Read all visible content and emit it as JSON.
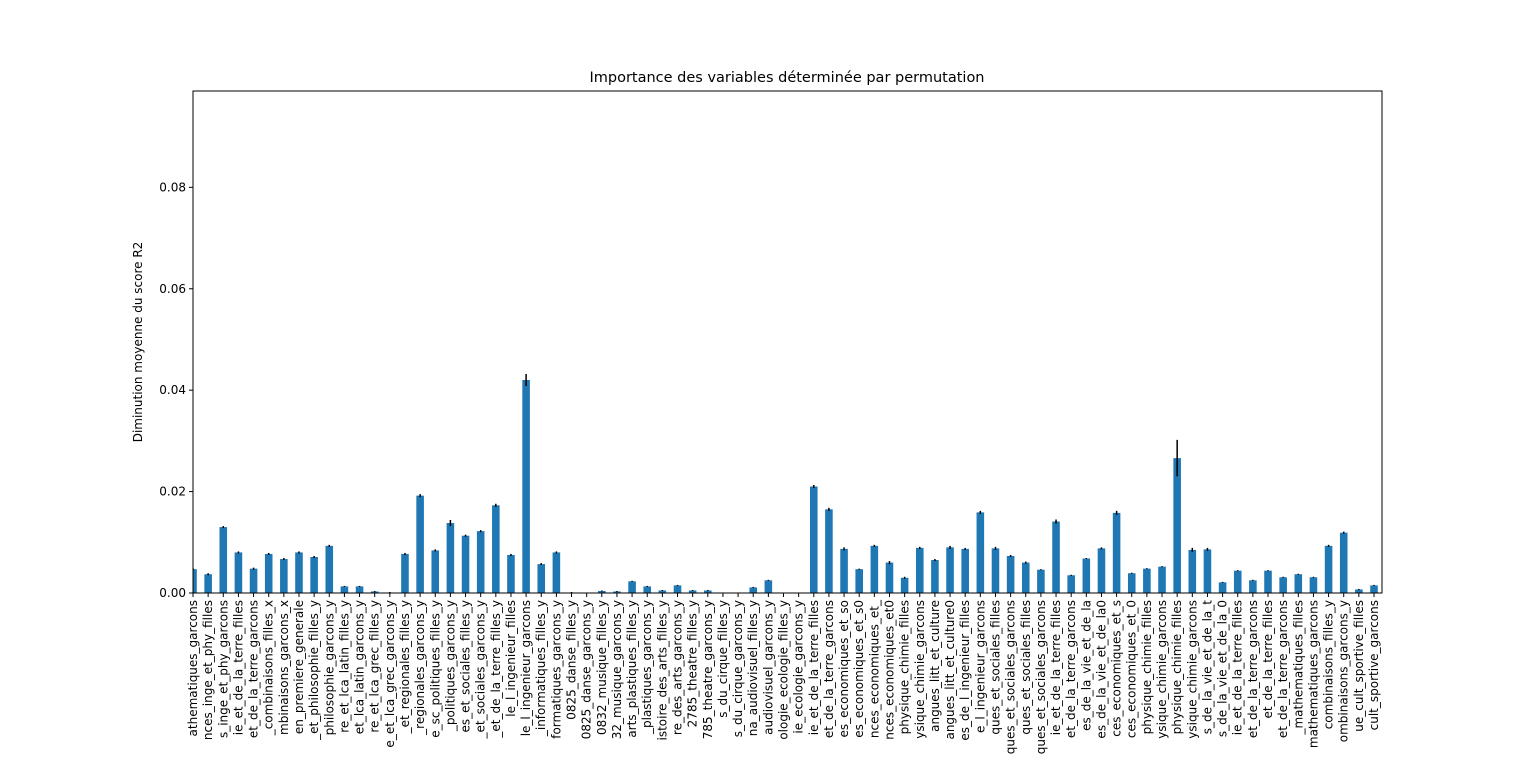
{
  "chart_data": {
    "type": "bar",
    "title": "Importance des variables déterminée par permutation",
    "ylabel": "Diminution moyenne du score R2",
    "color": "#1f77b4",
    "error_color": "#000000",
    "categories": [
      "athematiques_garcons",
      "nces_inge_et_phy_filles",
      "s_inge_et_phy_garcons",
      "ie_et_de_la_terre_filles",
      "et_de_la_terre_garcons",
      "_combinaisons_filles_x",
      "mbinaisons_garcons_x",
      "en_premiere_generale",
      "_et_philosophie_filles_y",
      "philosophie_garcons_y",
      "re_et_lca_latin_filles_y",
      "et_lca_latin_garcons_y",
      "re_et_lca_grec_filles_y",
      "e_et_lca_grec_garcons_y",
      "_et_regionales_filles_y",
      "_regionales_garcons_y",
      "e_sc_politiques_filles_y",
      "_politiques_garcons_y",
      "es_et_sociales_filles_y",
      "_et_sociales_garcons_y",
      "_et_de_la_terre_filles_y",
      "le_l_ingenieur_filles",
      "le_l_ingenieur_garcons",
      "_informatiques_filles_y",
      "formatiques_garcons_y",
      "0825_danse_filles_y",
      "0825_danse_garcons_y",
      "0832_musique_filles_y",
      "32_musique_garcons_y",
      "arts_plastiques_filles_y",
      "_plastiques_garcons_y",
      "istoire_des_arts_filles_y",
      "re_des_arts_garcons_y",
      "2785_theatre_filles_y",
      "785_theatre_garcons_y",
      "s_du_cirque_filles_y",
      "s_du_cirque_garcons_y",
      "na_audiovisuel_filles_y",
      "audiovisuel_garcons_y",
      "ologie_ecologie_filles_y",
      "ie_ecologie_garcons_y",
      "ie_et_de_la_terre_filles",
      "et_de_la_terre_garcons",
      "es_economiques_et_so",
      "es_economiques_et_s0",
      "nces_economiques_et_",
      "nces_economiques_et0",
      "physique_chimie_filles",
      "ysique_chimie_garcons",
      "angues_litt_et_culture",
      "angues_litt_et_culture0",
      "es_de_l_ingenieur_filles",
      "e_l_ingenieur_garcons",
      "ques_et_sociales_filles",
      "ques_et_sociales_garcons",
      "ques_et_sociales_filles",
      "ques_et_sociales_garcons",
      "ie_et_de_la_terre_filles",
      "et_de_la_terre_garcons",
      "es_de_la_vie_et_de_la",
      "es_de_la_vie_et_de_la0",
      "ces_economiques_et_s",
      "ces_economiques_et_0",
      "physique_chimie_filles",
      "ysique_chimie_garcons",
      "physique_chimie_filles",
      "ysique_chimie_garcons",
      "s_de_la_vie_et_de_la_t",
      "s_de_la_vie_et_de_la_0",
      "ie_et_de_la_terre_filles",
      "et_de_la_terre_garcons",
      "et_de_la_terre_filles",
      "et_de_la_terre_garcons",
      "_mathematiques_filles",
      "mathematiques_garcons",
      "combinaisons_filles_y",
      "ombinaisons_garcons_y",
      "ue_cult_sportive_filles",
      "cult_sportive_garcons"
    ],
    "values": [
      0.0047,
      0.0037,
      0.013,
      0.008,
      0.0048,
      0.0077,
      0.0067,
      0.008,
      0.0071,
      0.0093,
      0.0013,
      0.0013,
      0.0003,
      0.0001,
      0.0077,
      0.0192,
      0.0084,
      0.0138,
      0.0113,
      0.0122,
      0.0173,
      0.0075,
      0.042,
      0.0057,
      0.008,
      0.0001,
      0,
      0.0004,
      0.0003,
      0.0023,
      0.0013,
      0.0005,
      0.0015,
      0.0005,
      0.0005,
      0,
      0,
      0.0011,
      0.0025,
      0,
      0,
      0.021,
      0.0165,
      0.0087,
      0.0047,
      0.0093,
      0.006,
      0.003,
      0.0089,
      0.0065,
      0.009,
      0.0087,
      0.0159,
      0.0088,
      0.0073,
      0.006,
      0.0046,
      0.0141,
      0.0035,
      0.0068,
      0.0088,
      0.0158,
      0.0039,
      0.0048,
      0.0052,
      0.0266,
      0.0085,
      0.0086,
      0.0021,
      0.0044,
      0.0025,
      0.0044,
      0.0031,
      0.0037,
      0.0031,
      0.0093,
      0.0119,
      0.0007,
      0.0015
    ],
    "errors": [
      0.0002,
      0.0002,
      0.0002,
      0.0002,
      0.0002,
      0.0002,
      0.0002,
      0.0002,
      0.0002,
      0.0002,
      0.0001,
      0.0001,
      0.0001,
      0.0001,
      0.0002,
      0.0003,
      0.0002,
      0.0006,
      0.0002,
      0.0002,
      0.0003,
      0.0002,
      0.0012,
      0.0002,
      0.0002,
      0.0001,
      0,
      0.0001,
      0.0001,
      0.0001,
      0.0001,
      0.0001,
      0.0001,
      0.0001,
      0.0001,
      0,
      0,
      0.0001,
      0.0001,
      0,
      0,
      0.0003,
      0.0003,
      0.0003,
      0.0001,
      0.0002,
      0.0003,
      0.0002,
      0.0002,
      0.0002,
      0.0003,
      0.0002,
      0.0003,
      0.0003,
      0.0002,
      0.0002,
      0.0001,
      0.0004,
      0.0001,
      0.0001,
      0.0002,
      0.0004,
      0.0001,
      0.0001,
      0.0001,
      0.0036,
      0.0004,
      0.0003,
      0.0001,
      0.0001,
      0.0001,
      0.0001,
      0.0001,
      0.0001,
      0.0001,
      0.0002,
      0.0002,
      0.0001,
      0.0001
    ],
    "ylim": [
      0,
      0.099
    ],
    "yticks": [
      {
        "value": 0,
        "label": "0.00"
      },
      {
        "value": 0.02,
        "label": "0.02"
      },
      {
        "value": 0.04,
        "label": "0.04"
      },
      {
        "value": 0.06,
        "label": "0.06"
      },
      {
        "value": 0.08,
        "label": "0.08"
      }
    ],
    "grid": false
  }
}
